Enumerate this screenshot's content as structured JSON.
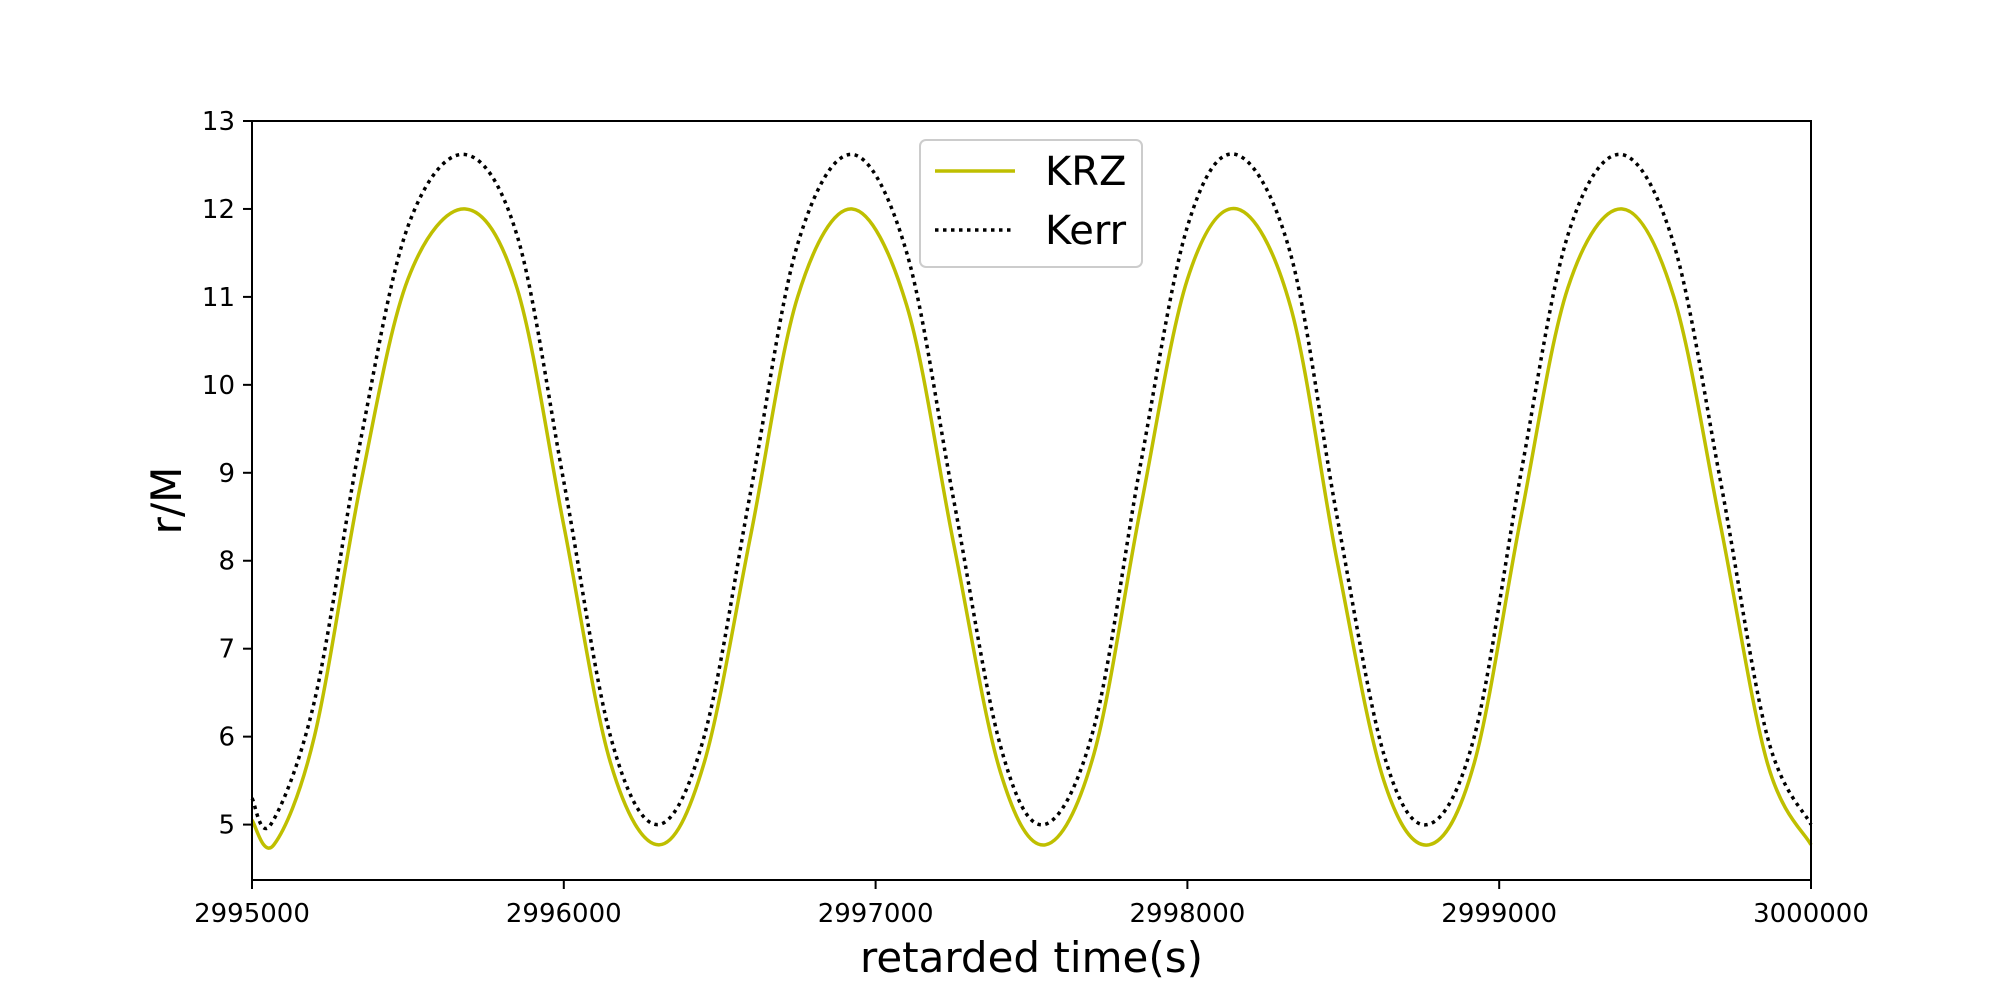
{
  "chart_data": {
    "type": "line",
    "title": "",
    "xlabel": "retarded time(s)",
    "ylabel": "r/M",
    "xlim": [
      2995000,
      3000000
    ],
    "ylim": [
      4.37,
      13
    ],
    "xticks": [
      2995000,
      2996000,
      2997000,
      2998000,
      2999000,
      3000000
    ],
    "xtick_labels": [
      "2995000",
      "2996000",
      "2997000",
      "2998000",
      "2999000",
      "3000000"
    ],
    "yticks": [
      5,
      6,
      7,
      8,
      9,
      10,
      11,
      12,
      13
    ],
    "ytick_labels": [
      "5",
      "6",
      "7",
      "8",
      "9",
      "10",
      "11",
      "12",
      "13"
    ],
    "grid": false,
    "legend_position": "top-center",
    "series": [
      {
        "name": "KRZ",
        "color": "#bfbf00",
        "style": "solid",
        "x": [
          2995000,
          2995070,
          2995200,
          2995350,
          2995500,
          2995685,
          2995850,
          2996000,
          2996150,
          2996305,
          2996450,
          2996600,
          2996750,
          2996925,
          2997100,
          2997250,
          2997400,
          2997545,
          2997700,
          2997850,
          2998000,
          2998160,
          2998330,
          2998480,
          2998630,
          2998775,
          2998920,
          2999070,
          2999220,
          2999395,
          2999560,
          2999710,
          2999860,
          3000000
        ],
        "y": [
          5.05,
          4.77,
          6.0,
          8.9,
          11.2,
          12.0,
          11.1,
          8.4,
          5.7,
          4.77,
          5.7,
          8.3,
          11.0,
          12.0,
          10.9,
          8.2,
          5.6,
          4.77,
          5.8,
          8.6,
          11.2,
          12.0,
          10.9,
          8.0,
          5.5,
          4.77,
          5.7,
          8.5,
          11.1,
          12.0,
          11.0,
          8.4,
          5.7,
          4.77
        ]
      },
      {
        "name": "Kerr",
        "color": "#000000",
        "style": "dotted",
        "x": [
          2995000,
          2995060,
          2995200,
          2995350,
          2995500,
          2995680,
          2995850,
          2996000,
          2996150,
          2996300,
          2996450,
          2996600,
          2996750,
          2996925,
          2997100,
          2997250,
          2997400,
          2997540,
          2997700,
          2997850,
          2998000,
          2998155,
          2998330,
          2998480,
          2998630,
          2998770,
          2998920,
          2999070,
          2999220,
          2999390,
          2999560,
          2999710,
          2999860,
          3000000
        ],
        "y": [
          5.3,
          5.0,
          6.4,
          9.4,
          11.8,
          12.62,
          11.7,
          8.9,
          6.0,
          5.0,
          6.0,
          8.8,
          11.6,
          12.62,
          11.5,
          8.7,
          5.9,
          5.0,
          6.1,
          9.1,
          11.8,
          12.62,
          11.5,
          8.5,
          5.8,
          5.0,
          6.0,
          9.0,
          11.7,
          12.62,
          11.6,
          8.9,
          6.0,
          5.0
        ]
      }
    ]
  }
}
